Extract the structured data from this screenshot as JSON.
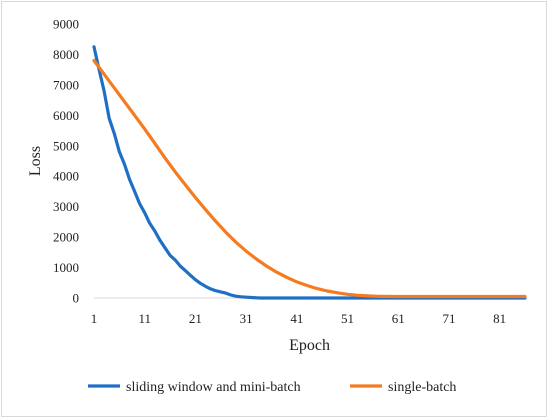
{
  "chart_data": {
    "type": "line",
    "xlabel": "Epoch",
    "ylabel": "Loss",
    "xlim": [
      1,
      86
    ],
    "ylim": [
      0,
      9000
    ],
    "x_ticks": [
      1,
      11,
      21,
      31,
      41,
      51,
      61,
      71,
      81
    ],
    "y_ticks": [
      0,
      1000,
      2000,
      3000,
      4000,
      5000,
      6000,
      7000,
      8000,
      9000
    ],
    "grid": false,
    "legend_position": "bottom",
    "series": [
      {
        "name": "sliding window and mini-batch",
        "color": "#1f6fc5",
        "x": [
          1,
          2,
          3,
          4,
          5,
          6,
          7,
          8,
          9,
          10,
          11,
          12,
          13,
          14,
          15,
          16,
          17,
          18,
          19,
          20,
          21,
          22,
          23,
          24,
          25,
          26,
          27,
          28,
          29,
          30,
          31,
          32,
          33,
          34,
          36,
          40,
          50,
          60,
          70,
          80,
          86
        ],
        "y": [
          8250,
          7500,
          6800,
          5900,
          5400,
          4800,
          4400,
          3900,
          3500,
          3100,
          2800,
          2450,
          2200,
          1900,
          1650,
          1400,
          1250,
          1050,
          900,
          750,
          600,
          480,
          380,
          300,
          240,
          200,
          160,
          100,
          60,
          40,
          25,
          15,
          5,
          0,
          0,
          0,
          0,
          0,
          0,
          0,
          0
        ]
      },
      {
        "name": "single-batch",
        "color": "#f47b20",
        "x": [
          1,
          3,
          5,
          7,
          9,
          11,
          13,
          15,
          17,
          19,
          21,
          23,
          25,
          27,
          29,
          31,
          33,
          35,
          37,
          39,
          41,
          43,
          45,
          47,
          49,
          51,
          53,
          55,
          57,
          60,
          70,
          80,
          86
        ],
        "y": [
          7800,
          7350,
          6900,
          6450,
          6000,
          5550,
          5080,
          4600,
          4150,
          3720,
          3300,
          2900,
          2520,
          2160,
          1830,
          1540,
          1280,
          1050,
          850,
          680,
          530,
          410,
          310,
          230,
          170,
          120,
          90,
          70,
          55,
          50,
          50,
          50,
          50
        ]
      }
    ]
  }
}
